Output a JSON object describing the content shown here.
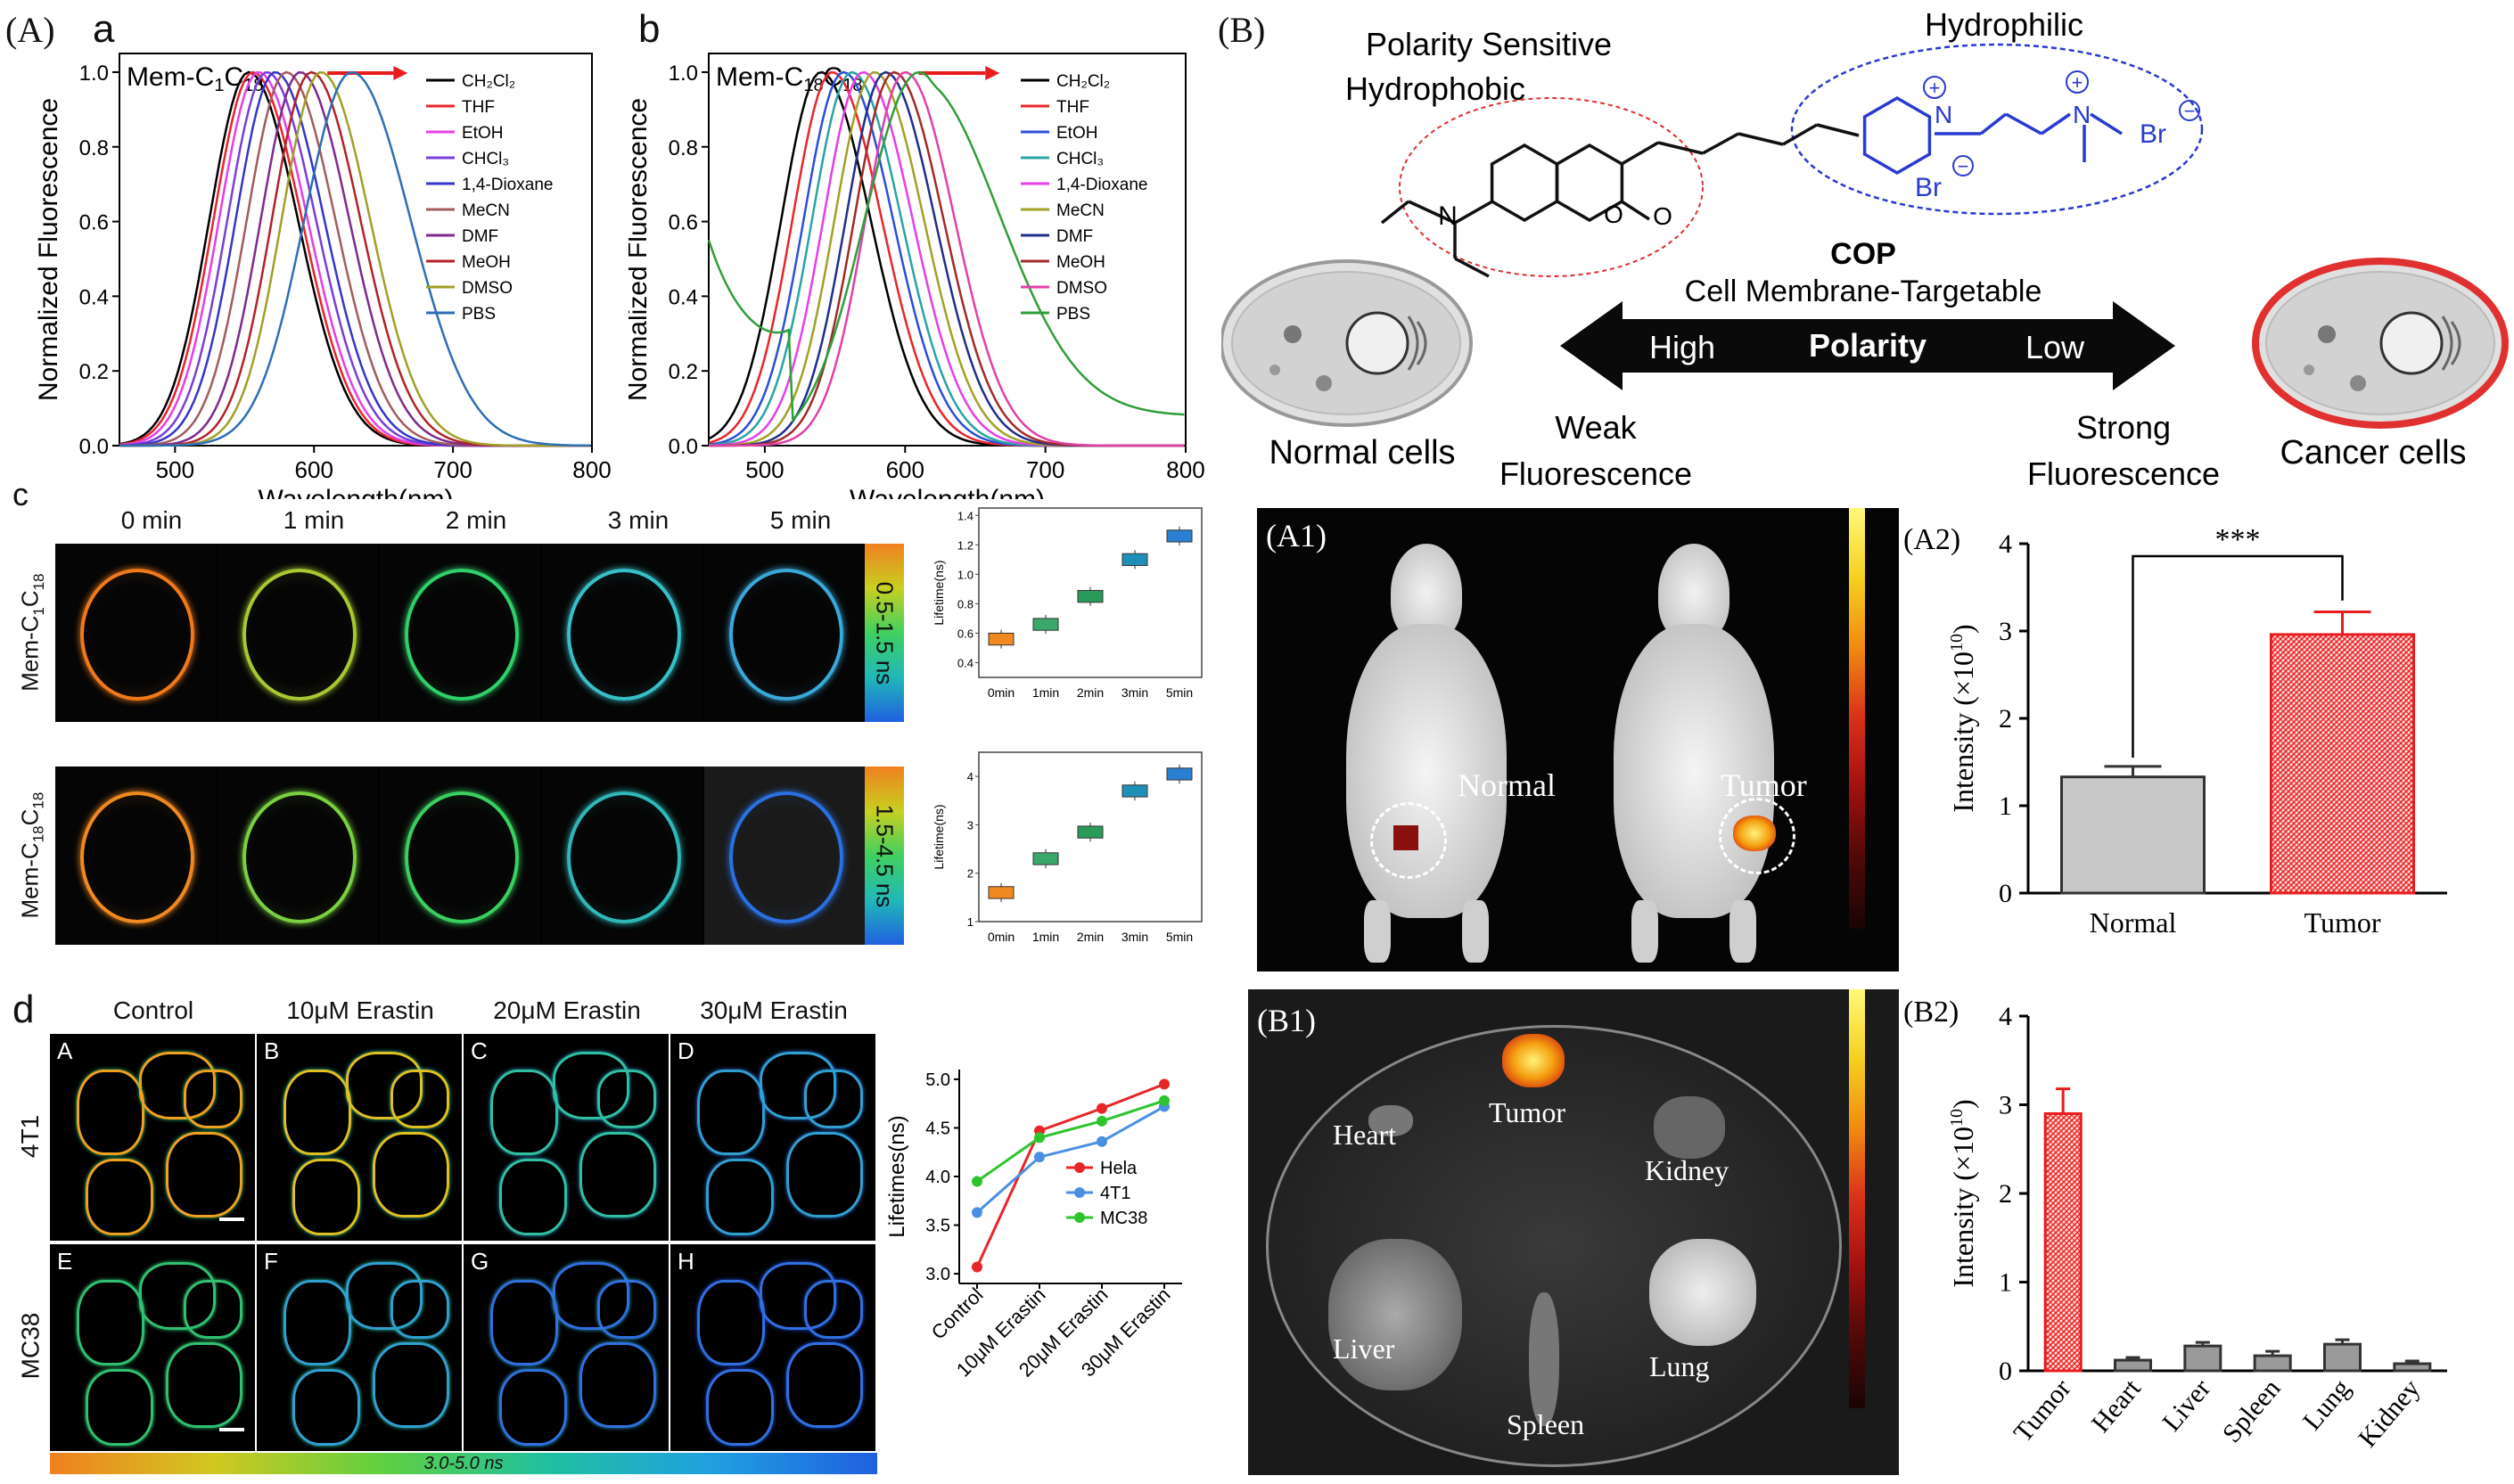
{
  "panel_labels": {
    "A": "(A)",
    "a": "a",
    "b": "b",
    "B": "(B)",
    "c": "c",
    "d": "d"
  },
  "spectra": {
    "a": {
      "title": "Mem-C",
      "title_sub1": "1",
      "title_mid": "C",
      "title_sub2": "18",
      "ylabel": "Normalized Fluorescence",
      "xlabel": "Wavelength(nm)",
      "xticks": [
        "500",
        "600",
        "700",
        "800"
      ],
      "yticks": [
        "0.0",
        "0.2",
        "0.4",
        "0.6",
        "0.8",
        "1.0"
      ],
      "legend": [
        "CH₂Cl₂",
        "THF",
        "EtOH",
        "CHCl₃",
        "1,4-Dioxane",
        "MeCN",
        "DMF",
        "MeOH",
        "DMSO",
        "PBS"
      ],
      "colors": [
        "#000000",
        "#e8262a",
        "#e53fe6",
        "#7a3fd6",
        "#3636c8",
        "#a35c5c",
        "#7f2a8c",
        "#b3222a",
        "#a0a028",
        "#2d6fb5"
      ],
      "peaks": [
        553,
        556,
        560,
        566,
        572,
        580,
        590,
        598,
        605,
        627
      ]
    },
    "b": {
      "title": "Mem-C",
      "title_sub1": "18",
      "title_mid": "C",
      "title_sub2": "18",
      "ylabel": "Normalized Fluorescence",
      "xlabel": "Wavelength(nm)",
      "xticks": [
        "500",
        "600",
        "700",
        "800"
      ],
      "yticks": [
        "0.0",
        "0.2",
        "0.4",
        "0.6",
        "0.8",
        "1.0"
      ],
      "legend": [
        "CH₂Cl₂",
        "THF",
        "EtOH",
        "CHCl₃",
        "1,4-Dioxane",
        "MeCN",
        "DMF",
        "MeOH",
        "DMSO",
        "PBS"
      ],
      "colors": [
        "#000000",
        "#e8262a",
        "#2b4fd6",
        "#2aa3a3",
        "#e53fe6",
        "#a0a028",
        "#1f2f8c",
        "#a32a2a",
        "#e040a8",
        "#2f9e3a"
      ],
      "peaks": [
        540,
        548,
        556,
        562,
        570,
        578,
        586,
        592,
        600,
        610
      ]
    }
  },
  "scheme": {
    "polarity_sensitive": "Polarity Sensitive",
    "hydrophobic": "Hydrophobic",
    "hydrophilic": "Hydrophilic",
    "cop": "COP",
    "cell_membrane": "Cell Membrane-Targetable",
    "high": "High",
    "polarity": "Polarity",
    "low": "Low",
    "normal_cells": "Normal cells",
    "cancer_cells": "Cancer cells",
    "weak1": "Weak",
    "weak2": "Fluorescence",
    "strong1": "Strong",
    "strong2": "Fluorescence",
    "atom_n": "N",
    "atom_o": "O",
    "atom_br": "Br",
    "charge_plus": "+",
    "charge_minus": "−"
  },
  "c": {
    "times": [
      "0 min",
      "1 min",
      "2 min",
      "3 min",
      "5 min"
    ],
    "row1_label": "Mem-C",
    "row1_sub": "1",
    "row1_mid": "C",
    "row1_sub2": "18",
    "row2_label": "Mem-C",
    "row2_sub": "18",
    "row2_mid": "C",
    "row2_sub2": "18",
    "scale1": "0.5-1.5 ns",
    "scale2": "1.5-4.5 ns",
    "ring_colors_1": [
      "#f07a1a",
      "#a8c832",
      "#2fd06a",
      "#38c0c8",
      "#3aa8d8"
    ],
    "ring_colors_2": [
      "#f08a20",
      "#7ad040",
      "#3ad060",
      "#30b8b8",
      "#2a70e0"
    ],
    "box1": {
      "ylabel": "Lifetime(ns)",
      "cats": [
        "0min",
        "1min",
        "2min",
        "3min",
        "5min"
      ],
      "yticks": [
        "0.4",
        "0.6",
        "0.8",
        "1.0",
        "1.2",
        "1.4"
      ],
      "values": [
        0.56,
        0.66,
        0.85,
        1.1,
        1.26
      ],
      "colors": [
        "#f08a20",
        "#3aa86a",
        "#2a9a5a",
        "#1f8fb8",
        "#2a7fd0"
      ]
    },
    "box2": {
      "ylabel": "Lifetime(ns)",
      "cats": [
        "0min",
        "1min",
        "2min",
        "3min",
        "5min"
      ],
      "yticks": [
        "1",
        "2",
        "3",
        "4"
      ],
      "values": [
        1.6,
        2.3,
        2.85,
        3.7,
        4.05
      ],
      "colors": [
        "#f08a20",
        "#3aa86a",
        "#2a9a5a",
        "#1f8fb8",
        "#2a7fd0"
      ]
    }
  },
  "d": {
    "cols": [
      "Control",
      "10μM Erastin",
      "20μM Erastin",
      "30μM Erastin"
    ],
    "rows": [
      "4T1",
      "MC38"
    ],
    "letters_top": [
      "A",
      "B",
      "C",
      "D"
    ],
    "letters_bot": [
      "E",
      "F",
      "G",
      "H"
    ],
    "scale_label": "3.0-5.0 ns",
    "line": {
      "ylabel": "Lifetimes(ns)",
      "cats": [
        "Control",
        "10μM Erastin",
        "20μM Erastin",
        "30μM Erastin"
      ],
      "yticks": [
        "3.0",
        "3.5",
        "4.0",
        "4.5",
        "5.0"
      ],
      "series": [
        {
          "name": "Hela",
          "color": "#e8262a",
          "values": [
            3.07,
            4.47,
            4.7,
            4.95
          ]
        },
        {
          "name": "4T1",
          "color": "#4a90e2",
          "values": [
            3.63,
            4.2,
            4.36,
            4.72
          ]
        },
        {
          "name": "MC38",
          "color": "#2ec42e",
          "values": [
            3.95,
            4.4,
            4.57,
            4.78
          ]
        }
      ]
    }
  },
  "a1": {
    "label": "(A1)",
    "normal": "Normal",
    "tumor": "Tumor"
  },
  "a2": {
    "label": "(A2)",
    "ylabel": "Intensity (×10",
    "ylabel_sup": "10",
    "yticks": [
      "0",
      "1",
      "2",
      "3",
      "4"
    ],
    "cats": [
      "Normal",
      "Tumor"
    ],
    "values": [
      1.33,
      2.96
    ],
    "errors": [
      0.12,
      0.26
    ],
    "sig": "***"
  },
  "b1": {
    "label": "(B1)",
    "organs": [
      "Heart",
      "Tumor",
      "Kidney",
      "Liver",
      "Lung",
      "Spleen"
    ]
  },
  "b2": {
    "label": "(B2)",
    "ylabel": "Intensity (×10",
    "ylabel_sup": "10",
    "yticks": [
      "0",
      "1",
      "2",
      "3",
      "4"
    ],
    "cats": [
      "Tumor",
      "Heart",
      "Liver",
      "Spleen",
      "Lung",
      "Kidney"
    ],
    "values": [
      2.9,
      0.12,
      0.28,
      0.17,
      0.3,
      0.08
    ],
    "errors": [
      0.28,
      0.03,
      0.04,
      0.05,
      0.05,
      0.03
    ]
  }
}
